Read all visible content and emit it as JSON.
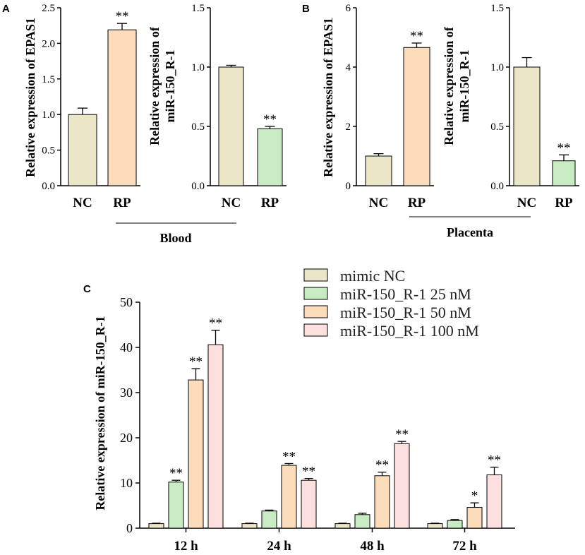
{
  "colors": {
    "nc": "#ECE6C9",
    "rp": "#FCDCBB",
    "green": "#C8EBC3",
    "orange": "#FCDCBB",
    "pink": "#FCE0E0",
    "axis": "#000000"
  },
  "groups": {
    "blood": "Blood",
    "placenta": "Placenta"
  },
  "chart_data": [
    {
      "id": "A1",
      "panel": "A",
      "type": "bar",
      "ylabel": "Relative expression of EPAS1",
      "ylim": [
        0,
        2.5
      ],
      "yticks": [
        "0.0",
        "0.5",
        "1.0",
        "1.5",
        "2.0",
        "2.5"
      ],
      "categories": [
        "NC",
        "RP"
      ],
      "values": [
        1.0,
        2.19
      ],
      "errors": [
        0.09,
        0.09
      ],
      "significance": [
        "",
        "**"
      ]
    },
    {
      "id": "A2",
      "panel": "",
      "type": "bar",
      "ylabel": "Relative expression of miR-150_R-1",
      "ylim": [
        0,
        1.5
      ],
      "yticks": [
        "0.0",
        "0.5",
        "1.0",
        "1.5"
      ],
      "categories": [
        "NC",
        "RP"
      ],
      "values": [
        1.0,
        0.48
      ],
      "errors": [
        0.015,
        0.02
      ],
      "significance": [
        "",
        "**"
      ]
    },
    {
      "id": "B1",
      "panel": "B",
      "type": "bar",
      "ylabel": "Relative expression of EPAS1",
      "ylim": [
        0,
        6
      ],
      "yticks": [
        "0",
        "2",
        "4",
        "6"
      ],
      "categories": [
        "NC",
        "RP"
      ],
      "values": [
        1.0,
        4.66
      ],
      "errors": [
        0.08,
        0.15
      ],
      "significance": [
        "",
        "**"
      ]
    },
    {
      "id": "B2",
      "panel": "",
      "type": "bar",
      "ylabel": "Relative expression of miR-150_R-1",
      "ylim": [
        0,
        1.5
      ],
      "yticks": [
        "0.0",
        "0.5",
        "1.0",
        "1.5"
      ],
      "categories": [
        "NC",
        "RP"
      ],
      "values": [
        1.0,
        0.21
      ],
      "errors": [
        0.08,
        0.05
      ],
      "significance": [
        "",
        "**"
      ]
    },
    {
      "id": "C",
      "panel": "C",
      "type": "bar",
      "ylabel": "Relative expression of miR-150_R-1",
      "ylim": [
        0,
        50
      ],
      "yticks": [
        "0",
        "10",
        "20",
        "30",
        "40",
        "50"
      ],
      "categories": [
        "12 h",
        "24 h",
        "48 h",
        "72 h"
      ],
      "series": [
        {
          "name": "mimic NC",
          "values": [
            1.0,
            1.0,
            1.0,
            1.0
          ],
          "errors": [
            0.1,
            0.1,
            0.1,
            0.1
          ],
          "significance": [
            "",
            "",
            "",
            ""
          ]
        },
        {
          "name": "miR-150_R-1 25 nM",
          "values": [
            10.2,
            3.8,
            3.0,
            1.7
          ],
          "errors": [
            0.4,
            0.2,
            0.3,
            0.2
          ],
          "significance": [
            "**",
            "",
            "",
            ""
          ]
        },
        {
          "name": "miR-150_R-1 50 nM",
          "values": [
            32.8,
            13.9,
            11.6,
            4.6
          ],
          "errors": [
            2.5,
            0.4,
            0.8,
            1.0
          ],
          "significance": [
            "**",
            "**",
            "**",
            "*"
          ]
        },
        {
          "name": "miR-150_R-1 100 nM",
          "values": [
            40.6,
            10.6,
            18.7,
            11.8
          ],
          "errors": [
            3.2,
            0.4,
            0.5,
            1.7
          ],
          "significance": [
            "**",
            "**",
            "**",
            "**"
          ]
        }
      ]
    }
  ]
}
